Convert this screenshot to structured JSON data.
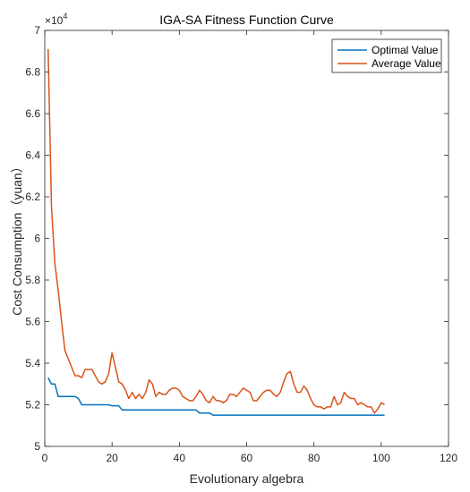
{
  "chart_data": {
    "type": "line",
    "title": "IGA-SA Fitness Function Curve",
    "xlabel": "Evolutionary algebra",
    "ylabel": "Cost Consumption（yuan）",
    "y_multiplier_label": "×10",
    "y_multiplier_exponent": "4",
    "xlim": [
      0,
      120
    ],
    "ylim": [
      5,
      7
    ],
    "xticks": [
      0,
      20,
      40,
      60,
      80,
      100,
      120
    ],
    "yticks": [
      5,
      5.2,
      5.4,
      5.6,
      5.8,
      6,
      6.2,
      6.4,
      6.6,
      6.8,
      7
    ],
    "ytick_labels": [
      "5",
      "5.2",
      "5.4",
      "5.6",
      "5.8",
      "6",
      "6.2",
      "6.4",
      "6.6",
      "6.8",
      "7"
    ],
    "grid": false,
    "legend_position": "top-right",
    "series": [
      {
        "name": "Optimal Value",
        "color": "#0072BD",
        "x": [
          1,
          2,
          3,
          4,
          5,
          6,
          7,
          8,
          9,
          10,
          11,
          12,
          13,
          14,
          15,
          16,
          17,
          18,
          19,
          20,
          21,
          22,
          23,
          24,
          25,
          26,
          27,
          28,
          29,
          30,
          31,
          32,
          33,
          34,
          35,
          36,
          37,
          38,
          39,
          40,
          41,
          42,
          43,
          44,
          45,
          46,
          47,
          48,
          49,
          50,
          51,
          52,
          53,
          54,
          55,
          56,
          57,
          58,
          59,
          60,
          61,
          62,
          63,
          64,
          65,
          66,
          67,
          68,
          69,
          70,
          71,
          72,
          73,
          74,
          75,
          76,
          77,
          78,
          79,
          80,
          81,
          82,
          83,
          84,
          85,
          86,
          87,
          88,
          89,
          90,
          91,
          92,
          93,
          94,
          95,
          96,
          97,
          98,
          99,
          100,
          101
        ],
        "y": [
          5.33,
          5.3,
          5.3,
          5.24,
          5.24,
          5.24,
          5.24,
          5.24,
          5.24,
          5.23,
          5.2,
          5.2,
          5.2,
          5.2,
          5.2,
          5.2,
          5.2,
          5.2,
          5.2,
          5.195,
          5.195,
          5.195,
          5.175,
          5.175,
          5.175,
          5.175,
          5.175,
          5.175,
          5.175,
          5.175,
          5.175,
          5.175,
          5.175,
          5.175,
          5.175,
          5.175,
          5.175,
          5.175,
          5.175,
          5.175,
          5.175,
          5.175,
          5.175,
          5.175,
          5.175,
          5.16,
          5.16,
          5.16,
          5.16,
          5.15,
          5.15,
          5.15,
          5.15,
          5.15,
          5.15,
          5.15,
          5.15,
          5.15,
          5.15,
          5.15,
          5.15,
          5.15,
          5.15,
          5.15,
          5.15,
          5.15,
          5.15,
          5.15,
          5.15,
          5.15,
          5.15,
          5.15,
          5.15,
          5.15,
          5.15,
          5.15,
          5.15,
          5.15,
          5.15,
          5.15,
          5.15,
          5.15,
          5.15,
          5.15,
          5.15,
          5.15,
          5.15,
          5.15,
          5.15,
          5.15,
          5.15,
          5.15,
          5.15,
          5.15,
          5.15,
          5.15,
          5.15,
          5.15,
          5.15,
          5.15,
          5.15
        ]
      },
      {
        "name": "Average Value",
        "color": "#D95319",
        "x": [
          1,
          2,
          3,
          4,
          5,
          6,
          7,
          8,
          9,
          10,
          11,
          12,
          13,
          14,
          15,
          16,
          17,
          18,
          19,
          20,
          21,
          22,
          23,
          24,
          25,
          26,
          27,
          28,
          29,
          30,
          31,
          32,
          33,
          34,
          35,
          36,
          37,
          38,
          39,
          40,
          41,
          42,
          43,
          44,
          45,
          46,
          47,
          48,
          49,
          50,
          51,
          52,
          53,
          54,
          55,
          56,
          57,
          58,
          59,
          60,
          61,
          62,
          63,
          64,
          65,
          66,
          67,
          68,
          69,
          70,
          71,
          72,
          73,
          74,
          75,
          76,
          77,
          78,
          79,
          80,
          81,
          82,
          83,
          84,
          85,
          86,
          87,
          88,
          89,
          90,
          91,
          92,
          93,
          94,
          95,
          96,
          97,
          98,
          99,
          100,
          101
        ],
        "y": [
          6.91,
          6.15,
          5.88,
          5.75,
          5.6,
          5.46,
          5.42,
          5.38,
          5.34,
          5.34,
          5.33,
          5.37,
          5.37,
          5.37,
          5.34,
          5.31,
          5.3,
          5.31,
          5.35,
          5.45,
          5.38,
          5.31,
          5.3,
          5.27,
          5.23,
          5.26,
          5.23,
          5.25,
          5.23,
          5.26,
          5.32,
          5.3,
          5.24,
          5.26,
          5.25,
          5.25,
          5.27,
          5.28,
          5.28,
          5.27,
          5.24,
          5.23,
          5.22,
          5.22,
          5.24,
          5.27,
          5.25,
          5.22,
          5.21,
          5.24,
          5.22,
          5.22,
          5.21,
          5.22,
          5.25,
          5.25,
          5.24,
          5.26,
          5.28,
          5.27,
          5.26,
          5.22,
          5.22,
          5.24,
          5.26,
          5.27,
          5.27,
          5.25,
          5.24,
          5.26,
          5.31,
          5.35,
          5.36,
          5.3,
          5.26,
          5.26,
          5.29,
          5.27,
          5.23,
          5.2,
          5.19,
          5.19,
          5.18,
          5.19,
          5.19,
          5.24,
          5.2,
          5.21,
          5.26,
          5.24,
          5.23,
          5.23,
          5.2,
          5.21,
          5.2,
          5.19,
          5.19,
          5.16,
          5.18,
          5.21,
          5.2
        ]
      }
    ]
  }
}
